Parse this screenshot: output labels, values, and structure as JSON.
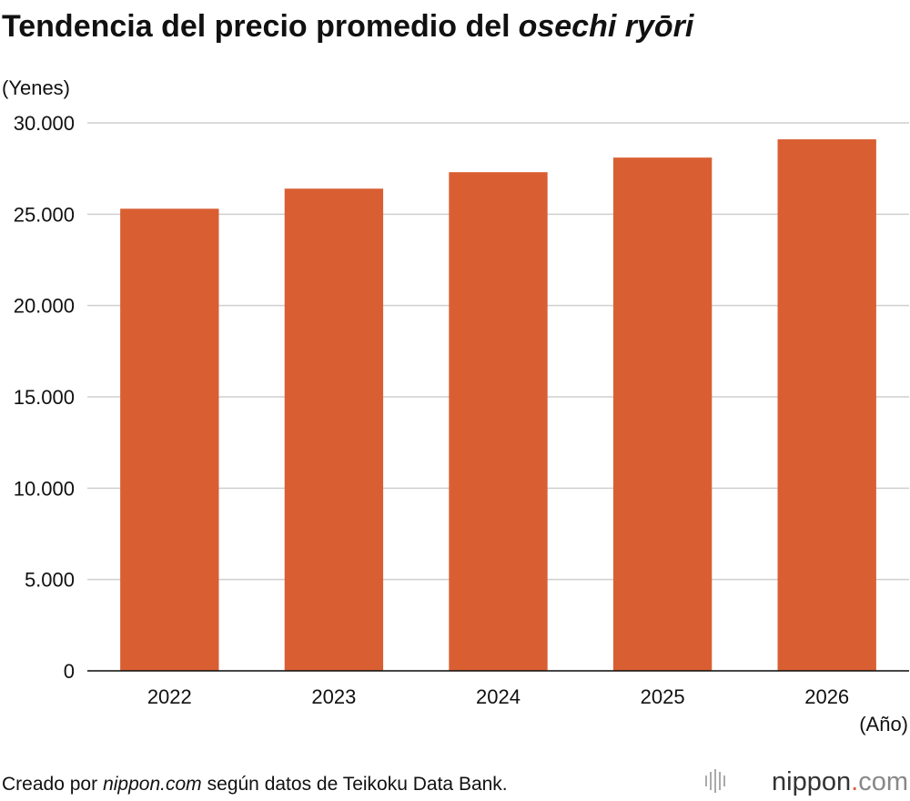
{
  "chart_data": {
    "type": "bar",
    "title": "Tendencia del precio promedio del",
    "title_italic": "osechi ryōri",
    "y_label": "(Yenes)",
    "x_label": "(Año)",
    "categories": [
      "2022",
      "2023",
      "2024",
      "2025",
      "2026"
    ],
    "values": [
      25300,
      26400,
      27300,
      28100,
      29100
    ],
    "color": "#d95f33",
    "ylim": [
      0,
      30000
    ],
    "yticks": [
      0,
      {
        "value": 5000,
        "label": "5.000"
      },
      {
        "value": 10000,
        "label": "10.000"
      },
      {
        "value": 15000,
        "label": "15.000"
      },
      {
        "value": 20000,
        "label": "20.000"
      },
      {
        "value": 25000,
        "label": "25.000"
      },
      {
        "value": 30000,
        "label": "30.000"
      }
    ],
    "grid": true,
    "source": {
      "prefix": "Creado por",
      "site": "nippon.com",
      "suffix": "según datos de Teikoku Data Bank."
    },
    "logo": {
      "name": "nippon",
      "dot": ".",
      "tld": "com"
    }
  }
}
